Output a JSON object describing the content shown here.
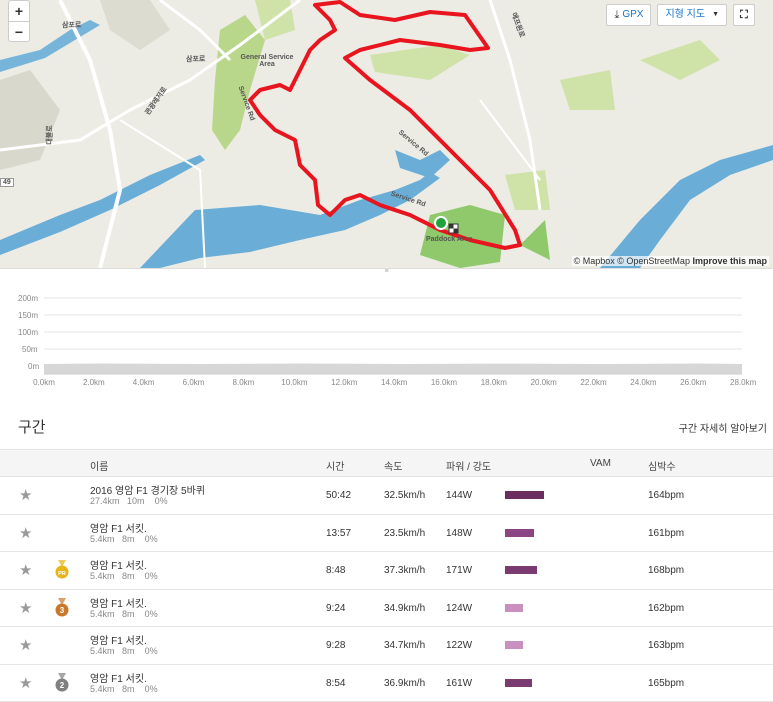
{
  "map": {
    "zoom_in": "+",
    "zoom_out": "−",
    "gpx_label": "GPX",
    "terrain_label": "지형 지도",
    "attribution": "© Mapbox © OpenStreetMap",
    "improve_label": "Improve this map",
    "labels": {
      "sampo1": "삼포로",
      "sampo2": "삼포로",
      "general_service": "General Service Area",
      "service_rd_left": "Service Rd",
      "service_rd_diag": "Service Rd",
      "service_rd_bottom": "Service Rd",
      "paddock": "Paddock Area",
      "gwangwang": "관광레저로",
      "deulpo": "대불로",
      "route49": "49",
      "formula": "에프원로"
    },
    "route_color": "#e8141e",
    "start_color": "#1fa33a"
  },
  "elevation": {
    "y_ticks": [
      "200m",
      "150m",
      "100m",
      "50m",
      "0m"
    ],
    "x_ticks": [
      "0.0km",
      "2.0km",
      "4.0km",
      "6.0km",
      "8.0km",
      "10.0km",
      "12.0km",
      "14.0km",
      "16.0km",
      "18.0km",
      "20.0km",
      "22.0km",
      "24.0km",
      "26.0km",
      "28.0km"
    ]
  },
  "segments": {
    "title": "구간",
    "detail_link": "구간 자세히 알아보기",
    "headers": {
      "name": "이름",
      "time": "시간",
      "speed": "속도",
      "power": "파워 / 강도",
      "vam": "VAM",
      "hr": "심박수"
    },
    "rows": [
      {
        "name": "2016 영암 F1 경기장 5바퀴",
        "distance": "27.4km",
        "elev": "10m",
        "grade": "0%",
        "time": "50:42",
        "speed": "32.5km/h",
        "power": "144W",
        "intensity": 0.75,
        "bar_color": "#6b2e5e",
        "hr": "164bpm",
        "medal": "none"
      },
      {
        "name": "영암 F1 서킷.",
        "distance": "5.4km",
        "elev": "8m",
        "grade": "0%",
        "time": "13:57",
        "speed": "23.5km/h",
        "power": "148W",
        "intensity": 0.55,
        "bar_color": "#8c4584",
        "hr": "161bpm",
        "medal": "none"
      },
      {
        "name": "영암 F1 서킷.",
        "distance": "5.4km",
        "elev": "8m",
        "grade": "0%",
        "time": "8:48",
        "speed": "37.3km/h",
        "power": "171W",
        "intensity": 0.62,
        "bar_color": "#7a3a72",
        "hr": "168bpm",
        "medal": "pr",
        "medal_text": "PR"
      },
      {
        "name": "영암 F1 서킷.",
        "distance": "5.4km",
        "elev": "8m",
        "grade": "0%",
        "time": "9:24",
        "speed": "34.9km/h",
        "power": "124W",
        "intensity": 0.34,
        "bar_color": "#c98fbf",
        "hr": "162bpm",
        "medal": "bronze",
        "medal_text": "3"
      },
      {
        "name": "영암 F1 서킷.",
        "distance": "5.4km",
        "elev": "8m",
        "grade": "0%",
        "time": "9:28",
        "speed": "34.7km/h",
        "power": "122W",
        "intensity": 0.34,
        "bar_color": "#c98fbf",
        "hr": "163bpm",
        "medal": "none"
      },
      {
        "name": "영암 F1 서킷.",
        "distance": "5.4km",
        "elev": "8m",
        "grade": "0%",
        "time": "8:54",
        "speed": "36.9km/h",
        "power": "161W",
        "intensity": 0.52,
        "bar_color": "#7a3a72",
        "hr": "165bpm",
        "medal": "silver",
        "medal_text": "2"
      }
    ]
  }
}
